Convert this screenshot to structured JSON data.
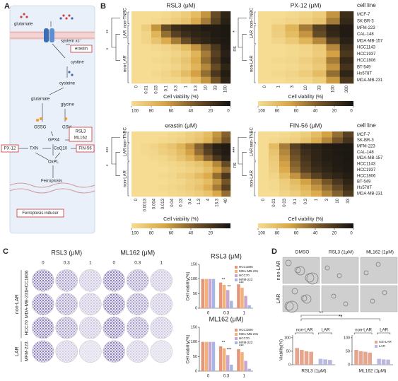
{
  "panel_labels": {
    "a": "A",
    "b": "B",
    "c": "C",
    "d": "D"
  },
  "diagram": {
    "glutamate_out": "glutamate",
    "transporter": "system xc⁻",
    "erastin": "erastin",
    "cystine": "cystine",
    "cysteine": "cysteine",
    "glutamate_in": "glutamate",
    "glycine": "glycine",
    "gssg": "GSSG",
    "gsh": "GSH",
    "gpx4": "GPX4",
    "rsl3": "RSL3",
    "ml162": "ML162",
    "px12": "PX-12",
    "txn": "TXN",
    "coq10": "CoQ10",
    "fin56": "FIN-56",
    "oxpl": "OxPL",
    "ferroptosis": "Ferroptosis",
    "inducer": "Ferroptosis inducer"
  },
  "heatmaps": {
    "cell_line_header": "cell line",
    "clim": [
      100,
      0
    ],
    "colormap": [
      "#f5dc92",
      "#d9a646",
      "#6e5028",
      "#141210"
    ],
    "groups": [
      {
        "name": "non-TNBC",
        "cell_lines": [
          "MCF-7",
          "SK-BR-3"
        ]
      },
      {
        "name": "LAR",
        "cell_lines": [
          "MFM-223",
          "CAL-148",
          "MDA-MB-157"
        ]
      },
      {
        "name": "non-LAR",
        "cell_lines": [
          "HCC1143",
          "HCC1937",
          "HCC1806",
          "BT-549",
          "Hs578T",
          "MDA-MB-231"
        ]
      }
    ],
    "charts": [
      {
        "title": "RSL3 (μM)",
        "xlabel": "Cell viability (%)",
        "colorbar_ticks": [
          100,
          80,
          60,
          40,
          20,
          0
        ],
        "significance": [
          "**",
          "*"
        ],
        "columns": [
          0,
          0.01,
          0.03,
          0.1,
          0.3,
          1,
          3.3,
          10,
          33,
          100
        ],
        "matrix": [
          [
            100,
            100,
            100,
            98,
            95,
            90,
            80,
            60,
            30,
            10
          ],
          [
            100,
            100,
            98,
            95,
            90,
            85,
            70,
            50,
            25,
            8
          ],
          [
            100,
            90,
            60,
            30,
            15,
            10,
            8,
            5,
            5,
            3
          ],
          [
            100,
            95,
            75,
            45,
            25,
            15,
            10,
            8,
            5,
            3
          ],
          [
            100,
            95,
            85,
            70,
            50,
            30,
            15,
            10,
            6,
            4
          ],
          [
            100,
            100,
            98,
            95,
            90,
            80,
            60,
            40,
            20,
            5
          ],
          [
            100,
            100,
            100,
            98,
            95,
            90,
            75,
            50,
            25,
            8
          ],
          [
            100,
            100,
            98,
            96,
            92,
            85,
            70,
            45,
            20,
            5
          ],
          [
            100,
            100,
            100,
            98,
            95,
            88,
            75,
            55,
            30,
            10
          ],
          [
            100,
            100,
            98,
            95,
            90,
            80,
            65,
            45,
            20,
            6
          ],
          [
            100,
            100,
            100,
            98,
            96,
            92,
            80,
            60,
            35,
            10
          ]
        ]
      },
      {
        "title": "PX-12 (μM)",
        "xlabel": "Cell viability (%)",
        "colorbar_ticks": [
          100,
          80,
          60,
          40,
          20,
          0
        ],
        "significance": [
          "*",
          "ns"
        ],
        "columns": [
          0,
          1,
          3,
          10,
          33,
          100,
          300
        ],
        "matrix": [
          [
            100,
            100,
            98,
            95,
            90,
            60,
            15
          ],
          [
            100,
            98,
            95,
            92,
            85,
            50,
            12
          ],
          [
            100,
            90,
            75,
            50,
            25,
            10,
            5
          ],
          [
            100,
            92,
            80,
            60,
            30,
            12,
            5
          ],
          [
            100,
            95,
            88,
            75,
            55,
            25,
            8
          ],
          [
            100,
            100,
            98,
            95,
            88,
            55,
            15
          ],
          [
            100,
            100,
            98,
            96,
            90,
            65,
            20
          ],
          [
            100,
            98,
            96,
            92,
            85,
            50,
            12
          ],
          [
            100,
            100,
            98,
            95,
            88,
            60,
            18
          ],
          [
            100,
            98,
            95,
            90,
            80,
            45,
            10
          ],
          [
            100,
            100,
            98,
            96,
            90,
            62,
            20
          ]
        ]
      },
      {
        "title": "erastin (μM)",
        "xlabel": "Cell viability (%)",
        "colorbar_ticks": [
          100,
          80,
          60,
          40,
          20
        ],
        "significance": [
          "***",
          "*"
        ],
        "columns": [
          0,
          0.0013,
          0.004,
          0.013,
          0.04,
          0.13,
          0.4,
          1.3,
          4,
          13.3,
          40
        ],
        "matrix": [
          [
            100,
            100,
            100,
            100,
            98,
            96,
            92,
            88,
            80,
            60,
            40
          ],
          [
            100,
            100,
            100,
            98,
            96,
            94,
            90,
            85,
            75,
            55,
            35
          ],
          [
            100,
            98,
            95,
            90,
            85,
            75,
            60,
            40,
            20,
            8,
            5
          ],
          [
            100,
            98,
            96,
            92,
            88,
            80,
            65,
            45,
            25,
            10,
            5
          ],
          [
            100,
            100,
            98,
            96,
            92,
            85,
            75,
            60,
            40,
            20,
            8
          ],
          [
            100,
            100,
            100,
            98,
            96,
            94,
            90,
            85,
            75,
            55,
            30
          ],
          [
            100,
            100,
            100,
            100,
            98,
            96,
            94,
            90,
            82,
            65,
            45
          ],
          [
            100,
            100,
            100,
            98,
            96,
            92,
            88,
            80,
            70,
            45,
            20
          ],
          [
            100,
            100,
            100,
            100,
            98,
            96,
            92,
            88,
            80,
            60,
            35
          ],
          [
            100,
            100,
            100,
            98,
            96,
            94,
            90,
            84,
            72,
            50,
            25
          ],
          [
            100,
            100,
            100,
            100,
            98,
            96,
            94,
            90,
            84,
            68,
            45
          ]
        ]
      },
      {
        "title": "FIN-56 (μM)",
        "xlabel": "Cell viability (%)",
        "colorbar_ticks": [
          100,
          80,
          60,
          40,
          20,
          0
        ],
        "significance": [
          "***",
          "ns"
        ],
        "columns": [
          0,
          0.01,
          0.03,
          0.1,
          0.3,
          1,
          3,
          10,
          33
        ],
        "matrix": [
          [
            100,
            100,
            98,
            95,
            90,
            80,
            65,
            45,
            25
          ],
          [
            100,
            98,
            95,
            92,
            85,
            72,
            55,
            35,
            18
          ],
          [
            100,
            80,
            50,
            25,
            12,
            8,
            5,
            4,
            3
          ],
          [
            100,
            85,
            55,
            30,
            15,
            10,
            6,
            4,
            3
          ],
          [
            100,
            88,
            60,
            35,
            18,
            10,
            6,
            5,
            3
          ],
          [
            100,
            90,
            65,
            40,
            22,
            12,
            8,
            5,
            4
          ],
          [
            100,
            92,
            70,
            45,
            25,
            15,
            10,
            6,
            4
          ],
          [
            100,
            95,
            80,
            60,
            40,
            25,
            15,
            10,
            6
          ],
          [
            100,
            98,
            90,
            80,
            65,
            50,
            35,
            20,
            10
          ],
          [
            100,
            98,
            92,
            85,
            75,
            60,
            45,
            30,
            15
          ],
          [
            100,
            100,
            95,
            90,
            82,
            70,
            55,
            40,
            22
          ]
        ]
      }
    ]
  },
  "plates": {
    "headers": [
      "RSL3 (μM)",
      "ML162 (μM)"
    ],
    "doses": [
      0,
      0.3,
      1
    ],
    "groups": [
      {
        "name": "non-LAR",
        "cell_lines": [
          "HCC1806",
          "MDA-MB-231",
          "HCC70"
        ]
      },
      {
        "name": "LAR",
        "cell_lines": [
          "MFM-223"
        ]
      }
    ]
  },
  "micrographs": {
    "headers": [
      "DMSO",
      "RSL3 (1μM)",
      "ML162 (1μM)"
    ],
    "rows": [
      "non-LAR",
      "LAR"
    ],
    "significance": [
      "**",
      "**"
    ]
  },
  "chart_data": [
    {
      "type": "bar",
      "title": "RSL3 (μM)",
      "ylabel": "Cell viability(%)",
      "categories": [
        "0",
        "0.3",
        "1"
      ],
      "series": [
        {
          "name": "HCC1806",
          "color": "#e4967a",
          "values": [
            100,
            88,
            82
          ]
        },
        {
          "name": "MDA-MB-231",
          "color": "#f2b27a",
          "values": [
            100,
            80,
            70
          ]
        },
        {
          "name": "HCC70",
          "color": "#c9a6cf",
          "values": [
            100,
            62,
            42
          ]
        },
        {
          "name": "MFM-223",
          "color": "#a8b7e2",
          "values": [
            100,
            25,
            10
          ]
        }
      ],
      "ylim": [
        0,
        150
      ],
      "yticks": [
        0,
        50,
        100,
        150
      ],
      "legend": "upper right",
      "annotations": [
        "**",
        "***",
        "**"
      ]
    },
    {
      "type": "bar",
      "title": "ML162 (μM)",
      "ylabel": "Cell viability(%)",
      "categories": [
        "0",
        "0.3",
        "1"
      ],
      "series": [
        {
          "name": "HCC1806",
          "color": "#e4967a",
          "values": [
            100,
            85,
            75
          ]
        },
        {
          "name": "MDA-MB-231",
          "color": "#f2b27a",
          "values": [
            100,
            78,
            65
          ]
        },
        {
          "name": "HCC70",
          "color": "#c9a6cf",
          "values": [
            100,
            55,
            35
          ]
        },
        {
          "name": "MFM-223",
          "color": "#a8b7e2",
          "values": [
            100,
            22,
            8
          ]
        }
      ],
      "ylim": [
        0,
        150
      ],
      "yticks": [
        0,
        50,
        100,
        150
      ],
      "legend": "upper right",
      "annotations": [
        "**",
        "***",
        "***"
      ]
    },
    {
      "type": "bar",
      "xlabel": "RSL3 (1μM)",
      "ylabel": "Viability(%)",
      "series": [
        {
          "name": "non-LAR",
          "color": "#e6a58e",
          "values": [
            62,
            55,
            50,
            48
          ]
        },
        {
          "name": "LAR",
          "color": "#b9b9de",
          "values": [
            22,
            20,
            18
          ]
        }
      ],
      "ylim": [
        0,
        110
      ],
      "yticks": [
        0,
        50,
        100
      ]
    },
    {
      "type": "bar",
      "xlabel": "ML162 (1μM)",
      "series": [
        {
          "name": "non-LAR",
          "color": "#e6a58e",
          "values": [
            55,
            50,
            48,
            45
          ]
        },
        {
          "name": "LAR",
          "color": "#b9b9de",
          "values": [
            22,
            20,
            19
          ]
        }
      ],
      "ylim": [
        0,
        110
      ],
      "yticks": [
        0,
        50,
        100
      ],
      "legend": "upper right"
    }
  ]
}
